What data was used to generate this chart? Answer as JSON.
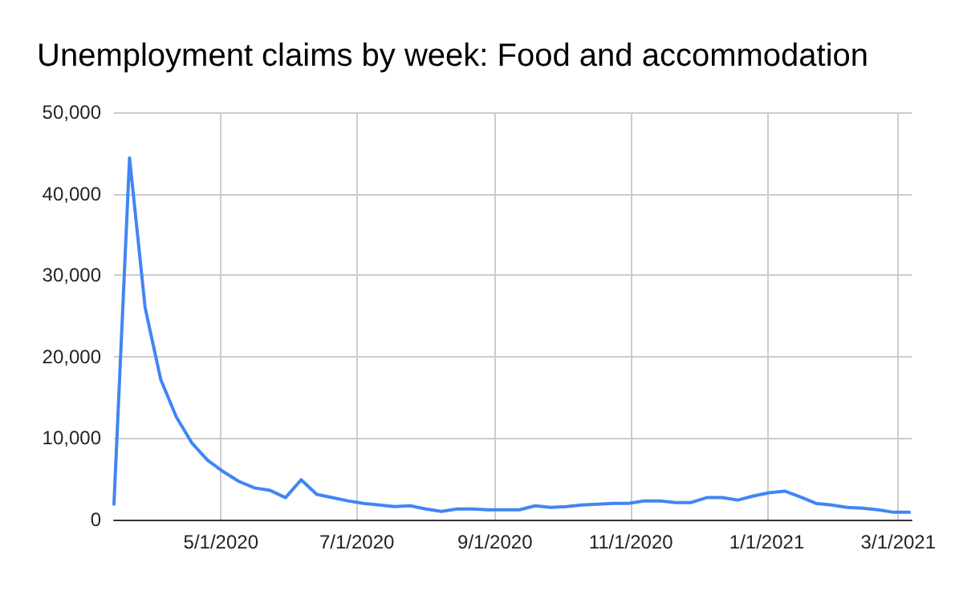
{
  "chart_data": {
    "type": "line",
    "title": "Unemployment claims by week: Food and accommodation",
    "x": [
      "2020-03-14",
      "2020-03-21",
      "2020-03-28",
      "2020-04-04",
      "2020-04-11",
      "2020-04-18",
      "2020-04-25",
      "2020-05-02",
      "2020-05-09",
      "2020-05-16",
      "2020-05-23",
      "2020-05-30",
      "2020-06-06",
      "2020-06-13",
      "2020-06-20",
      "2020-06-27",
      "2020-07-04",
      "2020-07-11",
      "2020-07-18",
      "2020-07-25",
      "2020-08-01",
      "2020-08-08",
      "2020-08-15",
      "2020-08-22",
      "2020-08-29",
      "2020-09-05",
      "2020-09-12",
      "2020-09-19",
      "2020-09-26",
      "2020-10-03",
      "2020-10-10",
      "2020-10-17",
      "2020-10-24",
      "2020-10-31",
      "2020-11-07",
      "2020-11-14",
      "2020-11-21",
      "2020-11-28",
      "2020-12-05",
      "2020-12-12",
      "2020-12-19",
      "2020-12-26",
      "2021-01-02",
      "2021-01-09",
      "2021-01-16",
      "2021-01-23",
      "2021-01-30",
      "2021-02-06",
      "2021-02-13",
      "2021-02-20",
      "2021-02-27",
      "2021-03-06"
    ],
    "series": [
      {
        "color": "#4285f4",
        "values": [
          1900,
          44400,
          26000,
          17200,
          12600,
          9400,
          7300,
          5900,
          4700,
          3900,
          3600,
          2700,
          4900,
          3100,
          2700,
          2300,
          2000,
          1800,
          1600,
          1700,
          1300,
          1000,
          1300,
          1300,
          1200,
          1200,
          1200,
          1700,
          1500,
          1600,
          1800,
          1900,
          2000,
          2000,
          2300,
          2300,
          2100,
          2100,
          2700,
          2700,
          2400,
          2900,
          3300,
          3500,
          2800,
          2000,
          1800,
          1500,
          1400,
          1200,
          900,
          900
        ]
      }
    ],
    "xlim": [
      "2020-03-14",
      "2021-03-07"
    ],
    "xticks": [
      {
        "value": "2020-05-01",
        "label": "5/1/2020"
      },
      {
        "value": "2020-07-01",
        "label": "7/1/2020"
      },
      {
        "value": "2020-09-01",
        "label": "9/1/2020"
      },
      {
        "value": "2020-11-01",
        "label": "11/1/2020"
      },
      {
        "value": "2021-01-01",
        "label": "1/1/2021"
      },
      {
        "value": "2021-03-01",
        "label": "3/1/2021"
      }
    ],
    "ylim": [
      0,
      50000
    ],
    "yticks": [
      {
        "value": 0,
        "label": "0"
      },
      {
        "value": 10000,
        "label": "10,000"
      },
      {
        "value": 20000,
        "label": "20,000"
      },
      {
        "value": 30000,
        "label": "30,000"
      },
      {
        "value": 40000,
        "label": "40,000"
      },
      {
        "value": 50000,
        "label": "50,000"
      }
    ],
    "grid": true,
    "marker": "none",
    "line_style": "solid"
  }
}
